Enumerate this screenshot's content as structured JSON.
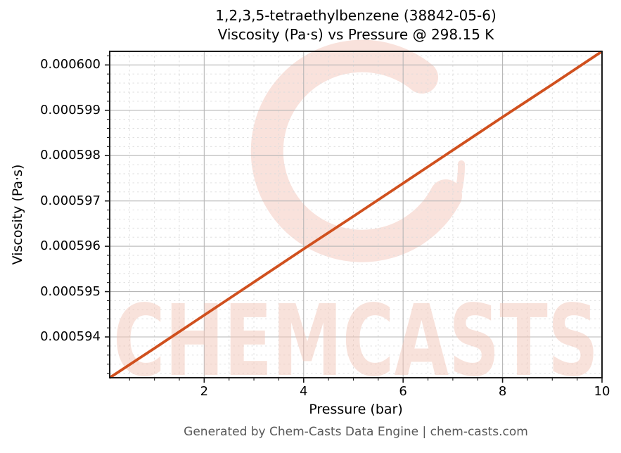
{
  "title": {
    "line1": "1,2,3,5-tetraethylbenzene (38842-05-6)",
    "line2": "Viscosity (Pa·s) vs Pressure @ 298.15 K"
  },
  "footer": "Generated by Chem-Casts Data Engine | chem-casts.com",
  "watermark": {
    "text": "CHEMCASTS",
    "color": "#f3c6b8",
    "logo_color": "#f9e2dc"
  },
  "chart_data": {
    "type": "line",
    "title": "1,2,3,5-tetraethylbenzene (38842-05-6) Viscosity (Pa·s) vs Pressure @ 298.15 K",
    "xlabel": "Pressure (bar)",
    "ylabel": "Viscosity (Pa·s)",
    "x": [
      0.1,
      1,
      2,
      3,
      4,
      5,
      6,
      7,
      8,
      9,
      10
    ],
    "y": [
      0.0005931,
      0.00059375,
      0.00059448,
      0.00059521,
      0.00059594,
      0.00059666,
      0.00059739,
      0.00059812,
      0.00059885,
      0.00059957,
      0.0006003
    ],
    "xlim": [
      0.1,
      10
    ],
    "ylim": [
      0.0005931,
      0.0006003
    ],
    "x_ticks": [
      2,
      4,
      6,
      8,
      10
    ],
    "x_tick_labels": [
      "2",
      "4",
      "6",
      "8",
      "10"
    ],
    "y_ticks": [
      0.000594,
      0.000595,
      0.000596,
      0.000597,
      0.000598,
      0.000599,
      0.0006
    ],
    "y_tick_labels": [
      "0.000594",
      "0.000595",
      "0.000596",
      "0.000597",
      "0.000598",
      "0.000599",
      "0.000600"
    ],
    "x_minor_step": 0.5,
    "y_minor_step": 2e-07,
    "grid": true,
    "legend_visible": false,
    "line_color": "#d0501e",
    "major_grid_color": "#b5b5b5",
    "minor_grid_color": "#dcdcdc",
    "spine_color": "#1a1a1a"
  }
}
